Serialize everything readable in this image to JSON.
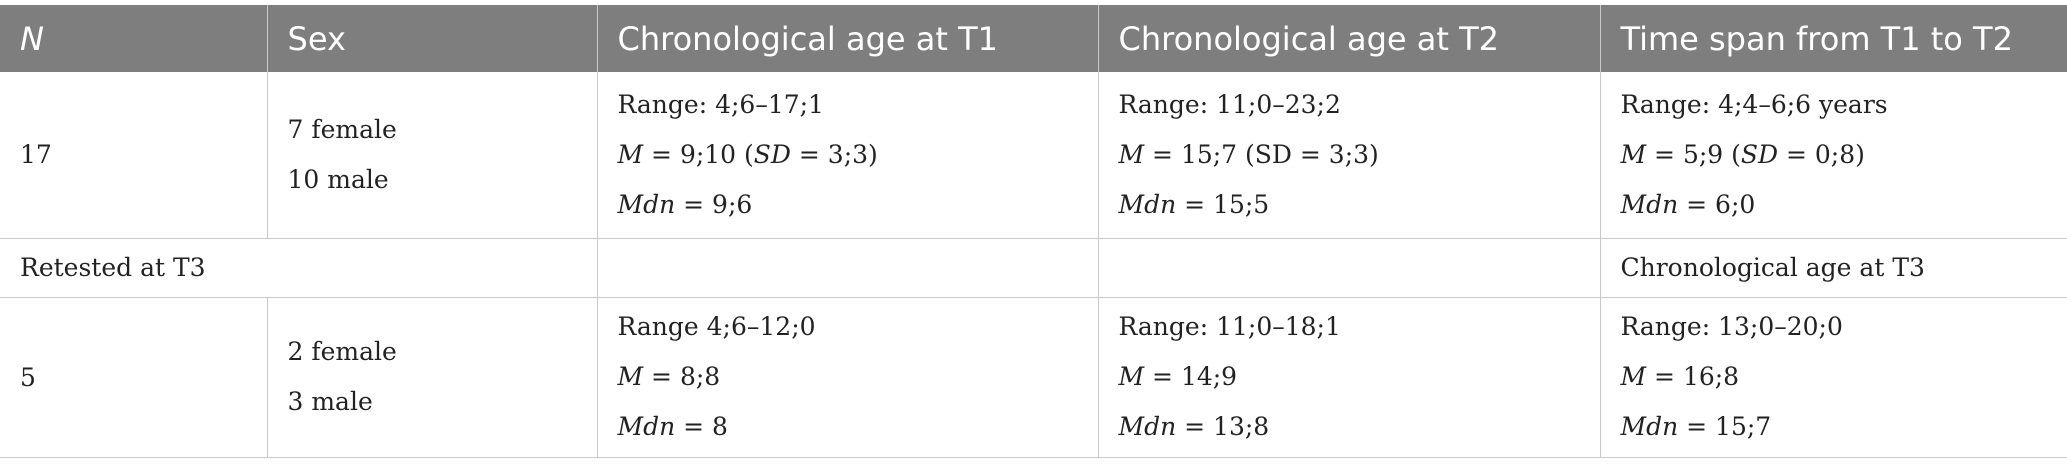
{
  "table": {
    "headers": [
      {
        "label": "N",
        "italic": true
      },
      {
        "label": "Sex",
        "italic": false
      },
      {
        "label": "Chronological age at T1",
        "italic": false
      },
      {
        "label": "Chronological age at T2",
        "italic": false
      },
      {
        "label": "Time span from T1 to T2",
        "italic": false
      }
    ],
    "row1": {
      "n": "17",
      "sex": [
        "7 female",
        "10 male"
      ],
      "t1": {
        "range_label": "Range: ",
        "range": "4;6–17;1",
        "mean_label": "M",
        "mean": " = 9;10 (",
        "sd_label": "SD",
        "sd": " = 3;3)",
        "mdn_label": "Mdn",
        "mdn": " = 9;6"
      },
      "t2": {
        "range_label": "Range: ",
        "range": "11;0–23;2",
        "mean_label": "M",
        "mean": " = 15;7 (SD = 3;3)",
        "mdn_label": "Mdn",
        "mdn": " = 15;5"
      },
      "span": {
        "range_label": "Range: ",
        "range": "4;4–6;6 years",
        "mean_label": "M",
        "mean": " = 5;9 (",
        "sd_label": "SD",
        "sd": " = 0;8)",
        "mdn_label": "Mdn",
        "mdn": " = 6;0"
      }
    },
    "retest_row": {
      "label": "Retested at T3",
      "col5": "Chronological age at T3"
    },
    "row2": {
      "n": "5",
      "sex": [
        "2 female",
        "3 male"
      ],
      "t1": {
        "range_label": "Range ",
        "range": "4;6–12;0",
        "mean_label": "M",
        "mean": " = 8;8",
        "mdn_label": "Mdn",
        "mdn": " = 8"
      },
      "t2": {
        "range_label": "Range: ",
        "range": "11;0–18;1",
        "mean_label": "M",
        "mean": " = 14;9",
        "mdn_label": "Mdn",
        "mdn": " = 13;8"
      },
      "t3": {
        "range_label": "Range: ",
        "range": "13;0–20;0",
        "mean_label": "M",
        "mean": " = 16;8",
        "mdn_label": "Mdn",
        "mdn": " = 15;7"
      }
    }
  },
  "colors": {
    "header_bg": "#7d7e7d",
    "header_text": "#ffffff",
    "grid": "#c9c9c9",
    "text": "#222222"
  }
}
